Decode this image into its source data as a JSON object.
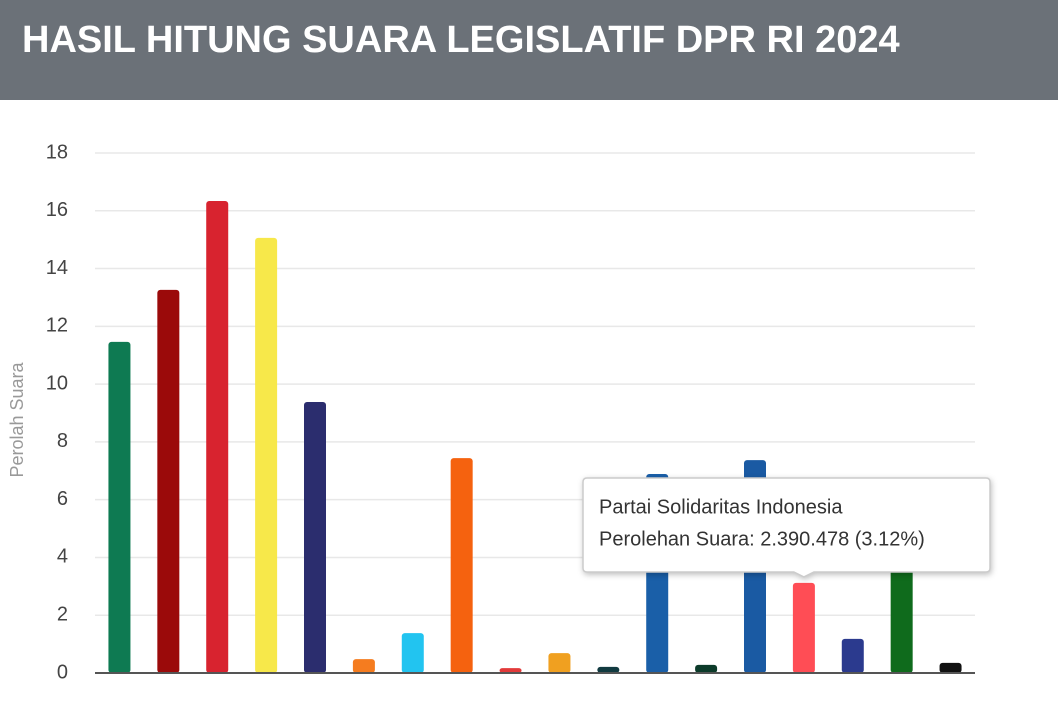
{
  "chart_data": {
    "type": "bar",
    "title": "HASIL HITUNG SUARA LEGISLATIF DPR RI 2024",
    "ylabel": "Perolah Suara",
    "categories": [
      null,
      null,
      null,
      null,
      null,
      null,
      null,
      null,
      null,
      null,
      null,
      null,
      null,
      null,
      null,
      null,
      null,
      null
    ],
    "values": [
      11.46,
      13.26,
      16.34,
      15.06,
      9.38,
      0.48,
      1.38,
      7.44,
      0.17,
      0.69,
      0.21,
      6.89,
      0.28,
      7.37,
      3.12,
      1.18,
      3.87,
      0.35
    ],
    "colors": [
      "#0e7a52",
      "#9b0a0a",
      "#d8232f",
      "#f7e84a",
      "#2b2d6e",
      "#f57c1f",
      "#22c4f0",
      "#f5620f",
      "#e23a3a",
      "#f0a020",
      "#113a40",
      "#1a5fa8",
      "#0c3b2a",
      "#1a5aa3",
      "#ff4d55",
      "#2b3a8e",
      "#0f6b1c",
      "#111111"
    ],
    "ylim": [
      0,
      18
    ],
    "yticks": [
      0,
      2,
      4,
      6,
      8,
      10,
      12,
      14,
      16,
      18
    ],
    "grid": true,
    "tooltip": {
      "title": "Partai Solidaritas Indonesia",
      "text": "Perolehan Suara: 2.390.478 (3.12%)"
    }
  }
}
